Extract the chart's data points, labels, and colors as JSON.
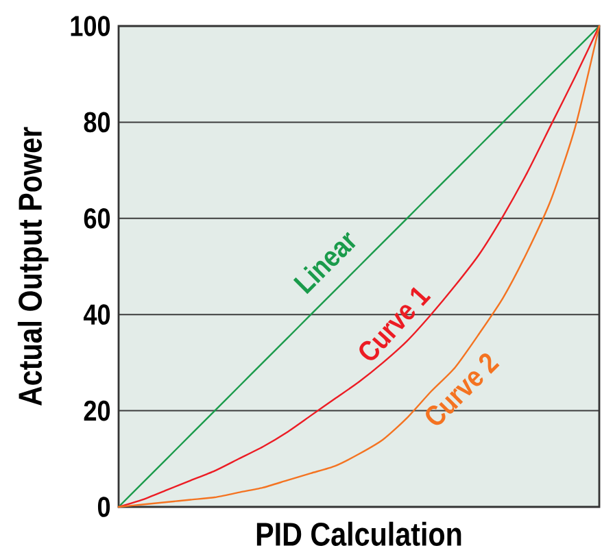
{
  "chart_data": {
    "type": "line",
    "xlabel": "PID Calculation",
    "ylabel": "Actual Output Power",
    "categories": [
      null,
      null,
      null,
      null,
      null,
      null,
      null,
      null,
      null,
      null,
      null,
      null,
      null,
      null,
      null,
      null,
      null,
      null,
      null,
      null,
      null
    ],
    "ylim": [
      0,
      100
    ],
    "yticks": [
      0,
      20,
      40,
      60,
      80,
      100
    ],
    "grid": "y",
    "line_style": "solid",
    "series": [
      {
        "name": "Linear",
        "color": "#1a9b4b",
        "values": [
          0,
          5,
          10,
          15,
          20,
          25,
          30,
          35,
          40,
          45,
          50,
          55,
          60,
          65,
          70,
          75,
          80,
          85,
          90,
          95,
          100
        ]
      },
      {
        "name": "Curve 1",
        "color": "#ec1c24",
        "values": [
          0,
          1.5,
          3.5,
          5.5,
          7.5,
          10,
          12.5,
          15.5,
          19,
          22.5,
          26,
          30,
          34.5,
          40,
          46,
          52.5,
          60.5,
          69.5,
          79.5,
          89.5,
          100
        ]
      },
      {
        "name": "Curve 2",
        "color": "#f47321",
        "values": [
          0,
          0.5,
          1,
          1.5,
          2,
          3,
          4,
          5.5,
          7,
          8.5,
          11,
          14,
          18.5,
          24,
          29,
          36,
          43.5,
          53,
          64,
          79,
          100
        ]
      }
    ]
  }
}
